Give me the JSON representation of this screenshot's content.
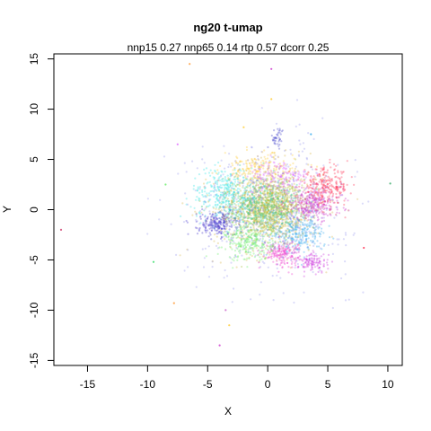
{
  "chart_data": {
    "type": "scatter",
    "title": "ng20 t-umap",
    "subtitle": "nnp15 0.27 nnp65 0.14 rtp 0.57 dcorr 0.25",
    "xlabel": "X",
    "ylabel": "Y",
    "xlim": [
      -17.8,
      11.2
    ],
    "ylim": [
      -15.5,
      15.5
    ],
    "xticks": [
      -15,
      -10,
      -5,
      0,
      5,
      10
    ],
    "yticks": [
      -15,
      -10,
      -5,
      0,
      5,
      10,
      15
    ],
    "grid": false,
    "legend": "none",
    "clusters": [
      {
        "cx": 0.0,
        "cy": 0.2,
        "sx": 1.4,
        "sy": 1.4,
        "n": 900,
        "color": "#a8c040"
      },
      {
        "cx": 0.1,
        "cy": 0.1,
        "sx": 2.3,
        "sy": 2.2,
        "n": 700,
        "color": "#d6b84a"
      },
      {
        "cx": -0.5,
        "cy": 0.3,
        "sx": 1.6,
        "sy": 1.5,
        "n": 350,
        "color": "#33cc99"
      },
      {
        "cx": -3.5,
        "cy": 1.6,
        "sx": 1.4,
        "sy": 1.3,
        "n": 320,
        "color": "#33e6e6"
      },
      {
        "cx": -4.2,
        "cy": -1.4,
        "sx": 0.8,
        "sy": 0.6,
        "n": 220,
        "color": "#4433cc"
      },
      {
        "cx": 3.8,
        "cy": 0.5,
        "sx": 1.2,
        "sy": 0.8,
        "n": 300,
        "color": "#cc33cc"
      },
      {
        "cx": 4.8,
        "cy": 2.3,
        "sx": 1.0,
        "sy": 0.9,
        "n": 260,
        "color": "#ff3355"
      },
      {
        "cx": 2.6,
        "cy": -2.4,
        "sx": 1.1,
        "sy": 0.9,
        "n": 250,
        "color": "#33aaee"
      },
      {
        "cx": 1.2,
        "cy": -4.3,
        "sx": 0.8,
        "sy": 0.6,
        "n": 180,
        "color": "#ee33cc"
      },
      {
        "cx": 3.8,
        "cy": -5.3,
        "sx": 0.6,
        "sy": 0.5,
        "n": 110,
        "color": "#cc33dd"
      },
      {
        "cx": -1.5,
        "cy": -3.3,
        "sx": 1.0,
        "sy": 0.9,
        "n": 220,
        "color": "#66ee66"
      },
      {
        "cx": -0.8,
        "cy": 4.0,
        "sx": 1.5,
        "sy": 0.8,
        "n": 180,
        "color": "#ffcc33"
      },
      {
        "cx": 1.0,
        "cy": 3.2,
        "sx": 1.3,
        "sy": 0.8,
        "n": 160,
        "color": "#dd66ff"
      },
      {
        "cx": 0.8,
        "cy": 7.2,
        "sx": 0.3,
        "sy": 0.5,
        "n": 40,
        "color": "#4444cc"
      },
      {
        "cx": 0.0,
        "cy": 0.0,
        "sx": 3.4,
        "sy": 3.3,
        "n": 500,
        "color": "#9999ee"
      }
    ],
    "outliers": [
      {
        "x": 0.3,
        "y": 14.0,
        "color": "#cc33cc"
      },
      {
        "x": -6.5,
        "y": 14.5,
        "color": "#ff9933"
      },
      {
        "x": 0.3,
        "y": 11.0,
        "color": "#ffcc33"
      },
      {
        "x": 10.2,
        "y": 2.6,
        "color": "#33aa66"
      },
      {
        "x": -17.2,
        "y": -2.0,
        "color": "#cc3366"
      },
      {
        "x": -3.5,
        "y": -10.0,
        "color": "#cc66cc"
      },
      {
        "x": -3.2,
        "y": -11.5,
        "color": "#ffcc33"
      },
      {
        "x": -4.0,
        "y": -13.5,
        "color": "#cc33cc"
      },
      {
        "x": -7.8,
        "y": -9.3,
        "color": "#ff9933"
      },
      {
        "x": -9.5,
        "y": -5.2,
        "color": "#33dd66"
      },
      {
        "x": 8.0,
        "y": -3.8,
        "color": "#ff3355"
      },
      {
        "x": -8.5,
        "y": 2.5,
        "color": "#66ee66"
      },
      {
        "x": -7.5,
        "y": 6.5,
        "color": "#dd66ff"
      },
      {
        "x": 3.6,
        "y": 7.5,
        "color": "#33aaee"
      },
      {
        "x": -2.0,
        "y": 8.2,
        "color": "#ffcc33"
      }
    ]
  }
}
